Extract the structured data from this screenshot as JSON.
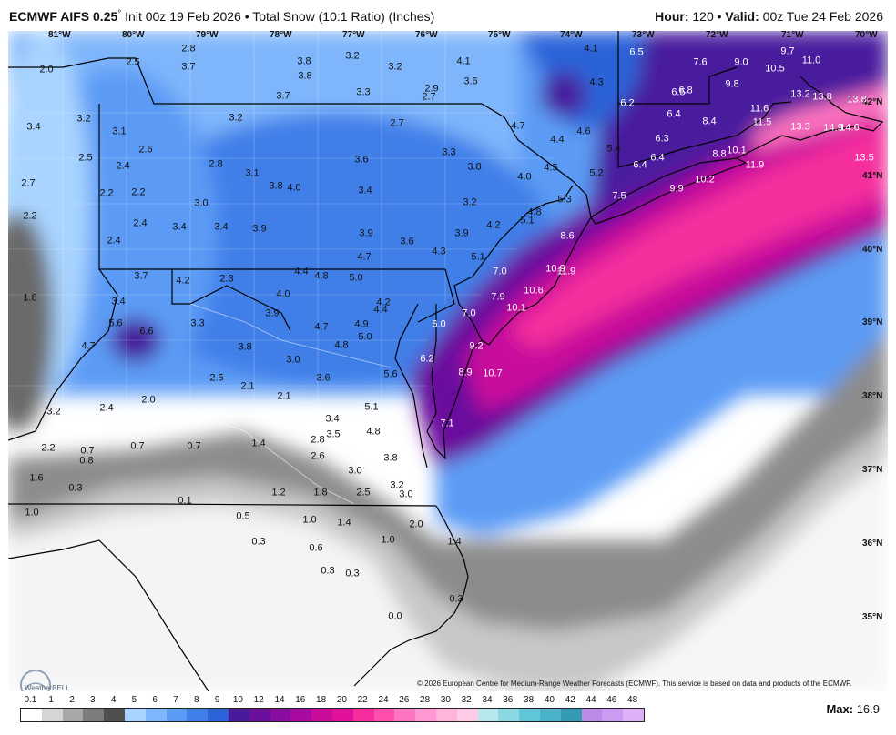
{
  "header": {
    "model": "ECMWF AIFS 0.25",
    "degree_symbol": "°",
    "init": "Init 00z 19 Feb 2026",
    "bullet": "•",
    "product": "Total Snow (10:1 Ratio) (Inches)",
    "hour_label": "Hour:",
    "hour_value": "120",
    "valid_label": "Valid:",
    "valid_value": "00z Tue 24 Feb 2026"
  },
  "map": {
    "longitude_labels": [
      "81°W",
      "80°W",
      "79°W",
      "78°W",
      "77°W",
      "76°W",
      "75°W",
      "74°W",
      "73°W",
      "72°W",
      "71°W",
      "70°W"
    ],
    "latitude_labels": [
      "42°N",
      "41°N",
      "40°N",
      "39°N",
      "38°N",
      "37°N",
      "36°N",
      "35°N"
    ],
    "snow_values": [
      "2.8",
      "2.5",
      "3.7",
      "3.8",
      "3.2",
      "3.2",
      "4.1",
      "3.6",
      "4.1",
      "6.5",
      "7.6",
      "9.0",
      "9.7",
      "11.0",
      "10.5",
      "2.0",
      "3.8",
      "3.7",
      "3.3",
      "2.7",
      "2.9",
      "4.3",
      "6.2",
      "9.8",
      "6.5",
      "6.8",
      "13.2",
      "13.8",
      "13.8",
      "3.4",
      "3.2",
      "3.1",
      "3.2",
      "2.7",
      "4.7",
      "4.4",
      "4.6",
      "6.4",
      "8.4",
      "11.6",
      "11.5",
      "13.3",
      "14.9",
      "14.6",
      "2.5",
      "2.6",
      "2.4",
      "2.8",
      "3.1",
      "3.6",
      "3.3",
      "3.8",
      "6.3",
      "5.4",
      "13.5",
      "2.7",
      "2.2",
      "2.2",
      "3.8",
      "4.0",
      "3.4",
      "4.0",
      "4.5",
      "5.2",
      "6.4",
      "6.4",
      "8.8",
      "10.1",
      "11.9",
      "2.2",
      "3.0",
      "3.2",
      "5.3",
      "7.5",
      "9.9",
      "10.2",
      "2.4",
      "3.4",
      "3.4",
      "3.9",
      "4.2",
      "4.8",
      "5.1",
      "8.6",
      "2.4",
      "3.9",
      "3.6",
      "4.3",
      "3.9",
      "3.7",
      "4.2",
      "2.3",
      "4.4",
      "4.8",
      "5.0",
      "4.7",
      "5.1",
      "7.0",
      "10.9",
      "11.9",
      "1.8",
      "4.0",
      "4.2",
      "4.4",
      "7.9",
      "10.6",
      "3.4",
      "3.9",
      "10.1",
      "5.6",
      "6.6",
      "3.3",
      "4.7",
      "4.9",
      "6.0",
      "7.0",
      "4.7",
      "3.8",
      "4.8",
      "5.0",
      "9.2",
      "3.0",
      "3.6",
      "5.6",
      "6.2",
      "8.9",
      "10.7",
      "2.5",
      "2.1",
      "2.1",
      "2.4",
      "2.0",
      "5.1",
      "3.2",
      "3.4",
      "7.1",
      "1.4",
      "2.8",
      "3.5",
      "4.8",
      "2.2",
      "0.7",
      "0.7",
      "0.7",
      "2.6",
      "3.8",
      "0.8",
      "3.0",
      "3.2",
      "1.6",
      "0.3",
      "1.2",
      "1.8",
      "2.5",
      "3.0",
      "0.1",
      "1.0",
      "0.5",
      "1.0",
      "1.4",
      "2.0",
      "0.3",
      "0.6",
      "1.0",
      "1.4",
      "0.3",
      "0.3",
      "0.3",
      "0.0"
    ]
  },
  "copyright": "© 2026 European Centre for Medium-Range Weather Forecasts (ECMWF). This service is based on data and products of the ECMWF.",
  "legend": {
    "ticks": [
      "0.1",
      "1",
      "2",
      "3",
      "4",
      "5",
      "6",
      "7",
      "8",
      "9",
      "10",
      "12",
      "14",
      "16",
      "18",
      "20",
      "22",
      "24",
      "26",
      "28",
      "30",
      "32",
      "34",
      "36",
      "38",
      "40",
      "42",
      "44",
      "46",
      "48"
    ],
    "colors": [
      "#ffffff",
      "#d6d6d6",
      "#a8a8a8",
      "#7c7c7c",
      "#4f4f4f",
      "#a8d4ff",
      "#7fb6fb",
      "#5b9bf5",
      "#3f7fe8",
      "#2b63d8",
      "#4a1a9e",
      "#6a0f9e",
      "#8a0ba0",
      "#a80aa2",
      "#c80d9c",
      "#e2119a",
      "#f52d9d",
      "#ff4fad",
      "#ff74c0",
      "#ff98d2",
      "#ffb4dc",
      "#ffcce8",
      "#b6e8ee",
      "#8ad8e2",
      "#5ec6d6",
      "#47b2c8",
      "#359ab4",
      "#b98ae8",
      "#cc9af0",
      "#deb0f6"
    ],
    "max_label": "Max:",
    "max_value": "16.9"
  },
  "logo_text": "WeatherBELL"
}
